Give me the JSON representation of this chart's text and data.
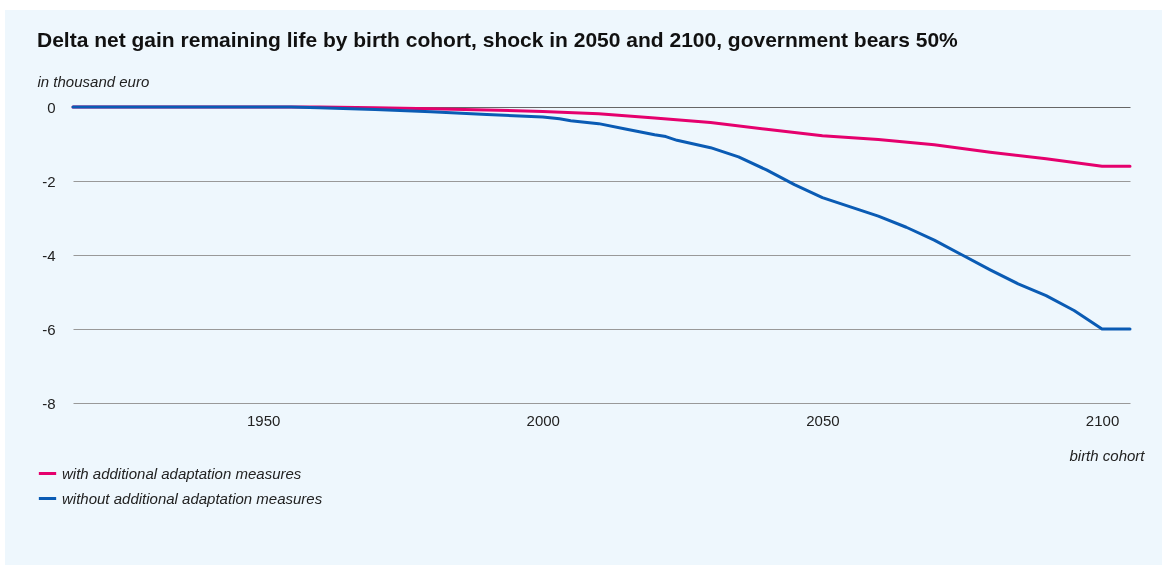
{
  "chart_data": {
    "type": "line",
    "title": "Delta net gain remaining life by birth cohort, shock in 2050 and 2100, government bears 50%",
    "ylabel": "in thousand euro",
    "xlabel": "birth cohort",
    "xlim": [
      1916,
      2105
    ],
    "xticks": [
      1950,
      2000,
      2050,
      2100
    ],
    "ylim": [
      -8,
      0
    ],
    "yticks": [
      0,
      -2,
      -4,
      -6,
      -8
    ],
    "grid": "y",
    "legend": "bottom left",
    "series": [
      {
        "name": "with additional adaptation measures",
        "color": "#e5006d",
        "x": [
          1916,
          1940,
          1960,
          1970,
          1980,
          1990,
          2000,
          2010,
          2020,
          2030,
          2040,
          2050,
          2060,
          2070,
          2080,
          2090,
          2100,
          2105
        ],
        "values": [
          0,
          0,
          0,
          -0.02,
          -0.05,
          -0.08,
          -0.12,
          -0.18,
          -0.3,
          -0.42,
          -0.6,
          -0.78,
          -0.88,
          -1.02,
          -1.22,
          -1.4,
          -1.6,
          -1.6
        ]
      },
      {
        "name": "without additional adaptation measures",
        "color": "#0a5bb4",
        "x": [
          1916,
          1940,
          1955,
          1960,
          1970,
          1980,
          1990,
          2000,
          2003,
          2005,
          2010,
          2015,
          2020,
          2022,
          2024,
          2030,
          2035,
          2040,
          2045,
          2050,
          2055,
          2060,
          2065,
          2070,
          2075,
          2080,
          2085,
          2090,
          2095,
          2100,
          2105
        ],
        "values": [
          0,
          0,
          0,
          -0.02,
          -0.07,
          -0.13,
          -0.2,
          -0.27,
          -0.32,
          -0.37,
          -0.45,
          -0.6,
          -0.75,
          -0.8,
          -0.9,
          -1.1,
          -1.35,
          -1.7,
          -2.1,
          -2.45,
          -2.7,
          -2.95,
          -3.25,
          -3.6,
          -4.0,
          -4.4,
          -4.78,
          -5.1,
          -5.5,
          -6.0,
          -6.0
        ]
      }
    ]
  }
}
